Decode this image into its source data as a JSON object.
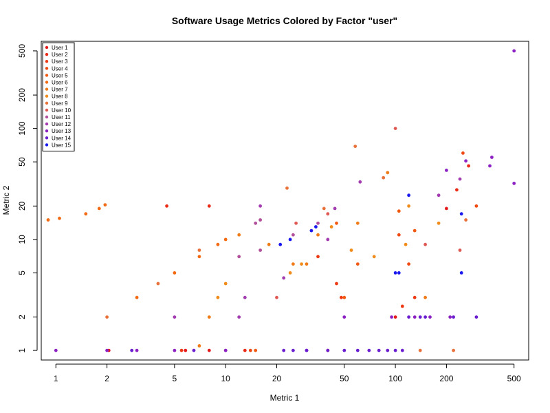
{
  "chart_data": {
    "type": "scatter",
    "title": "Software Usage Metrics Colored by Factor \"user\"",
    "xlabel": "Metric 1",
    "ylabel": "Metric 2",
    "xscale": "log",
    "yscale": "log",
    "xlim": [
      0.82,
      610
    ],
    "ylim": [
      0.82,
      610
    ],
    "xticks": [
      "1",
      "2",
      "5",
      "10",
      "20",
      "50",
      "100",
      "200",
      "500"
    ],
    "yticks": [
      "1",
      "2",
      "5",
      "10",
      "20",
      "50",
      "100",
      "200",
      "500"
    ],
    "grid": false,
    "legend_position": "top-left",
    "series": [
      {
        "name": "User 1",
        "color": "#e41a1c",
        "points": [
          [
            2.05,
            1
          ],
          [
            5.8,
            1
          ],
          [
            8,
            1
          ],
          [
            100,
            2
          ],
          [
            200,
            19
          ]
        ]
      },
      {
        "name": "User 2",
        "color": "#ea2b17",
        "points": [
          [
            4.5,
            20
          ],
          [
            8,
            20
          ],
          [
            13,
            1
          ],
          [
            230,
            28
          ],
          [
            270,
            46
          ]
        ]
      },
      {
        "name": "User 3",
        "color": "#ed3a15",
        "points": [
          [
            5.5,
            1
          ],
          [
            35,
            7
          ],
          [
            45,
            4
          ],
          [
            48,
            3
          ],
          [
            110,
            2.5
          ],
          [
            130,
            3
          ]
        ]
      },
      {
        "name": "User 4",
        "color": "#f04a13",
        "points": [
          [
            14,
            1
          ],
          [
            40,
            1
          ],
          [
            105,
            11
          ],
          [
            120,
            6
          ],
          [
            250,
            60
          ],
          [
            300,
            20
          ]
        ]
      },
      {
        "name": "User 5",
        "color": "#f25a12",
        "points": [
          [
            15,
            1
          ],
          [
            45,
            14
          ],
          [
            50,
            3
          ],
          [
            60,
            6
          ],
          [
            105,
            18
          ],
          [
            130,
            12
          ]
        ]
      },
      {
        "name": "User 6",
        "color": "#f26a14",
        "points": [
          [
            0.9,
            15
          ],
          [
            1.05,
            15.5
          ],
          [
            1.5,
            17
          ],
          [
            1.8,
            19
          ],
          [
            1.95,
            20.5
          ],
          [
            3,
            3
          ],
          [
            5,
            5
          ],
          [
            7,
            7
          ],
          [
            9,
            9
          ],
          [
            10,
            10
          ]
        ]
      },
      {
        "name": "User 7",
        "color": "#f07c19",
        "points": [
          [
            7,
            1.1
          ],
          [
            8,
            2
          ],
          [
            12,
            11
          ],
          [
            18,
            9
          ],
          [
            25,
            6
          ],
          [
            30,
            6
          ],
          [
            35,
            11
          ],
          [
            60,
            14
          ],
          [
            90,
            40
          ],
          [
            150,
            3
          ]
        ]
      },
      {
        "name": "User 8",
        "color": "#f08c1c",
        "points": [
          [
            9,
            3
          ],
          [
            10,
            4
          ],
          [
            24,
            5
          ],
          [
            28,
            6
          ],
          [
            42,
            13
          ],
          [
            55,
            8
          ],
          [
            75,
            7
          ],
          [
            115,
            9
          ],
          [
            120,
            20
          ],
          [
            180,
            14
          ]
        ]
      },
      {
        "name": "User 9",
        "color": "#e9713a",
        "points": [
          [
            2,
            2
          ],
          [
            4,
            4
          ],
          [
            7,
            8
          ],
          [
            23,
            29
          ],
          [
            38,
            19
          ],
          [
            58,
            69
          ],
          [
            85,
            36
          ],
          [
            140,
            1
          ],
          [
            220,
            1
          ],
          [
            260,
            15
          ]
        ]
      },
      {
        "name": "User 10",
        "color": "#e05a55",
        "points": [
          [
            10,
            1
          ],
          [
            20,
            3
          ],
          [
            26,
            14
          ],
          [
            40,
            17
          ],
          [
            100,
            100
          ],
          [
            150,
            9
          ],
          [
            240,
            8
          ]
        ]
      },
      {
        "name": "User 11",
        "color": "#b24f9a",
        "points": [
          [
            12,
            7
          ],
          [
            15,
            14
          ],
          [
            16,
            15
          ],
          [
            16,
            8
          ],
          [
            25,
            11
          ],
          [
            35,
            14
          ]
        ]
      },
      {
        "name": "User 12",
        "color": "#a33cb0",
        "points": [
          [
            5,
            2
          ],
          [
            12,
            2
          ],
          [
            13,
            3
          ],
          [
            16,
            20
          ],
          [
            22,
            4.5
          ],
          [
            40,
            10
          ],
          [
            44,
            19
          ],
          [
            62,
            33
          ],
          [
            180,
            25
          ],
          [
            240,
            35
          ]
        ]
      },
      {
        "name": "User 13",
        "color": "#8c22c4",
        "points": [
          [
            1,
            1
          ],
          [
            2,
            1
          ],
          [
            3,
            1
          ],
          [
            5,
            1
          ],
          [
            10,
            1
          ],
          [
            30,
            1
          ],
          [
            50,
            2
          ],
          [
            95,
            2
          ],
          [
            130,
            2
          ],
          [
            160,
            2
          ],
          [
            200,
            42
          ],
          [
            210,
            2
          ],
          [
            260,
            51
          ],
          [
            360,
            46
          ],
          [
            370,
            55
          ],
          [
            500,
            32
          ],
          [
            500,
            500
          ]
        ]
      },
      {
        "name": "User 14",
        "color": "#6a1ed0",
        "points": [
          [
            2.8,
            1
          ],
          [
            6.5,
            1
          ],
          [
            22,
            1
          ],
          [
            25,
            1
          ],
          [
            30,
            1
          ],
          [
            40,
            1
          ],
          [
            50,
            1
          ],
          [
            60,
            1
          ],
          [
            70,
            1
          ],
          [
            80,
            1
          ],
          [
            90,
            1
          ],
          [
            100,
            1
          ],
          [
            110,
            1
          ],
          [
            120,
            2
          ],
          [
            140,
            2
          ],
          [
            150,
            2
          ],
          [
            220,
            2
          ],
          [
            300,
            2
          ]
        ]
      },
      {
        "name": "User 15",
        "color": "#1a1aee",
        "points": [
          [
            21,
            9
          ],
          [
            24,
            10
          ],
          [
            32,
            12
          ],
          [
            34,
            13
          ],
          [
            100,
            5
          ],
          [
            105,
            5
          ],
          [
            120,
            25
          ],
          [
            245,
            17
          ],
          [
            245,
            5
          ]
        ]
      }
    ]
  }
}
